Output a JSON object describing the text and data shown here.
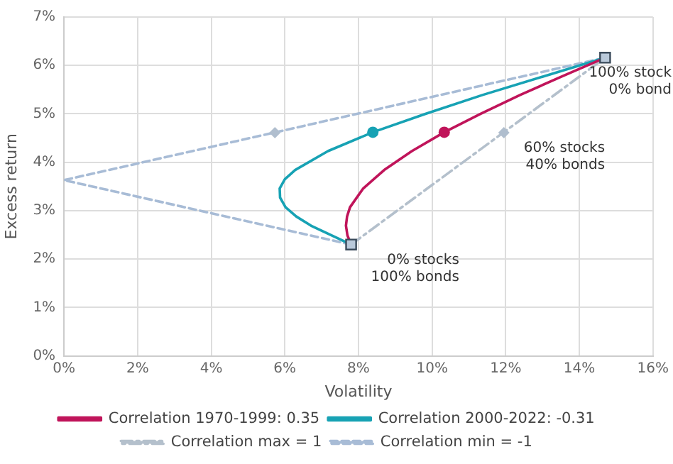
{
  "chart_data": {
    "type": "line",
    "xlabel": "Volatility",
    "ylabel": "Excess return",
    "xlim": [
      0,
      16
    ],
    "xticks": [
      {
        "value": 0,
        "label": "0%"
      },
      {
        "value": 2,
        "label": "2%"
      },
      {
        "value": 4,
        "label": "4%"
      },
      {
        "value": 6,
        "label": "6%"
      },
      {
        "value": 8,
        "label": "8%"
      },
      {
        "value": 10,
        "label": "10%"
      },
      {
        "value": 12,
        "label": "12%"
      },
      {
        "value": 14,
        "label": "14%"
      },
      {
        "value": 16,
        "label": "16%"
      }
    ],
    "ylim": [
      0,
      7
    ],
    "yticks": [
      {
        "value": 0,
        "label": "0%"
      },
      {
        "value": 1,
        "label": "1%"
      },
      {
        "value": 2,
        "label": "2%"
      },
      {
        "value": 3,
        "label": "3%"
      },
      {
        "value": 4,
        "label": "4%"
      },
      {
        "value": 5,
        "label": "5%"
      },
      {
        "value": 6,
        "label": "6%"
      },
      {
        "value": 7,
        "label": "7%"
      }
    ],
    "grid": true,
    "legend": "bottom",
    "series": [
      {
        "name": "Correlation 1970-1999: 0.35",
        "type": "line",
        "color": "#c0145a",
        "line_style": "solid",
        "marker": "none",
        "x": [
          7.8,
          7.7,
          7.66,
          7.69,
          7.77,
          8.13,
          8.7,
          9.45,
          10.33,
          11.32,
          12.39,
          13.52,
          14.7
        ],
        "values": [
          2.3,
          2.49,
          2.69,
          2.88,
          3.07,
          3.46,
          3.84,
          4.23,
          4.62,
          5.0,
          5.39,
          5.77,
          6.16
        ]
      },
      {
        "name": "Correlation 2000-2022: -0.31",
        "type": "line",
        "color": "#17a2b4",
        "line_style": "solid",
        "marker": "none",
        "x": [
          7.8,
          6.71,
          6.31,
          6.02,
          5.87,
          5.86,
          6.0,
          6.28,
          7.17,
          8.39,
          9.82,
          11.37,
          13.01,
          14.7
        ],
        "values": [
          2.3,
          2.69,
          2.88,
          3.07,
          3.27,
          3.46,
          3.65,
          3.84,
          4.23,
          4.62,
          5.0,
          5.39,
          5.77,
          6.16
        ]
      },
      {
        "name": "Correlation max = 1",
        "type": "line",
        "color": "#b4c0cc",
        "line_style": "dashdot",
        "marker": "none",
        "x": [
          7.8,
          14.7
        ],
        "values": [
          2.3,
          6.16
        ]
      },
      {
        "name": "Correlation min = -1",
        "type": "line",
        "color": "#a8bcd6",
        "line_style": "dashed",
        "marker": "none",
        "x": [
          7.8,
          0,
          14.7
        ],
        "values": [
          2.3,
          3.63,
          6.16
        ]
      },
      {
        "type": "scatter",
        "marker": "diamond",
        "color": "#b0bece",
        "x": [
          5.73,
          11.95
        ],
        "values": [
          4.61,
          4.61
        ]
      },
      {
        "type": "scatter",
        "marker": "circle",
        "colors": [
          "#c0145a",
          "#17a2b4"
        ],
        "x": [
          10.33,
          8.39
        ],
        "values": [
          4.62,
          4.62
        ]
      },
      {
        "type": "scatter",
        "marker": "square",
        "color": "#b9c9da",
        "x": [
          7.8,
          14.7
        ],
        "values": [
          2.3,
          6.16
        ]
      }
    ],
    "annotations": [
      {
        "text": "100% stock\n0% bond",
        "x": 14.7,
        "y": 6.16
      },
      {
        "text": "60% stocks\n40% bonds",
        "x": 11.95,
        "y": 4.61
      },
      {
        "text": "0% stocks\n100% bonds",
        "x": 7.8,
        "y": 2.3
      }
    ]
  }
}
